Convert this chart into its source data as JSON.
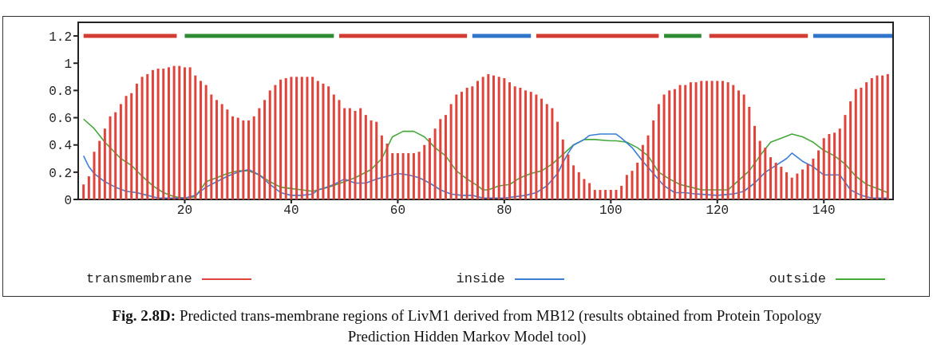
{
  "chart_data": {
    "type": "bar",
    "x": [
      1,
      2,
      3,
      4,
      5,
      6,
      7,
      8,
      9,
      10,
      11,
      12,
      13,
      14,
      15,
      16,
      17,
      18,
      19,
      20,
      21,
      22,
      23,
      24,
      25,
      26,
      27,
      28,
      29,
      30,
      31,
      32,
      33,
      34,
      35,
      36,
      37,
      38,
      39,
      40,
      41,
      42,
      43,
      44,
      45,
      46,
      47,
      48,
      49,
      50,
      51,
      52,
      53,
      54,
      55,
      56,
      57,
      58,
      59,
      60,
      61,
      62,
      63,
      64,
      65,
      66,
      67,
      68,
      69,
      70,
      71,
      72,
      73,
      74,
      75,
      76,
      77,
      78,
      79,
      80,
      81,
      82,
      83,
      84,
      85,
      86,
      87,
      88,
      89,
      90,
      91,
      92,
      93,
      94,
      95,
      96,
      97,
      98,
      99,
      100,
      101,
      102,
      103,
      104,
      105,
      106,
      107,
      108,
      109,
      110,
      111,
      112,
      113,
      114,
      115,
      116,
      117,
      118,
      119,
      120,
      121,
      122,
      123,
      124,
      125,
      126,
      127,
      128,
      129,
      130,
      131,
      132,
      133,
      134,
      135,
      136,
      137,
      138,
      139,
      140,
      141,
      142,
      143,
      144,
      145,
      146,
      147,
      148,
      149,
      150,
      151,
      152
    ],
    "series": [
      {
        "name": "transmembrane",
        "color": "#e0443c",
        "values": [
          0.11,
          0.17,
          0.35,
          0.43,
          0.52,
          0.61,
          0.64,
          0.7,
          0.76,
          0.78,
          0.85,
          0.9,
          0.92,
          0.95,
          0.96,
          0.96,
          0.97,
          0.98,
          0.98,
          0.97,
          0.97,
          0.91,
          0.87,
          0.84,
          0.77,
          0.73,
          0.7,
          0.66,
          0.61,
          0.6,
          0.58,
          0.58,
          0.61,
          0.67,
          0.73,
          0.8,
          0.84,
          0.88,
          0.89,
          0.9,
          0.9,
          0.9,
          0.9,
          0.9,
          0.87,
          0.85,
          0.83,
          0.77,
          0.73,
          0.67,
          0.67,
          0.65,
          0.67,
          0.62,
          0.58,
          0.57,
          0.47,
          0.41,
          0.34,
          0.34,
          0.34,
          0.34,
          0.34,
          0.35,
          0.4,
          0.45,
          0.52,
          0.59,
          0.62,
          0.7,
          0.77,
          0.79,
          0.82,
          0.83,
          0.87,
          0.9,
          0.92,
          0.91,
          0.9,
          0.89,
          0.86,
          0.83,
          0.82,
          0.8,
          0.79,
          0.77,
          0.74,
          0.7,
          0.67,
          0.57,
          0.44,
          0.33,
          0.25,
          0.2,
          0.15,
          0.12,
          0.07,
          0.07,
          0.07,
          0.07,
          0.07,
          0.1,
          0.18,
          0.21,
          0.27,
          0.4,
          0.47,
          0.58,
          0.7,
          0.77,
          0.8,
          0.81,
          0.84,
          0.84,
          0.86,
          0.86,
          0.87,
          0.87,
          0.87,
          0.87,
          0.87,
          0.86,
          0.84,
          0.8,
          0.77,
          0.68,
          0.54,
          0.43,
          0.38,
          0.31,
          0.27,
          0.24,
          0.2,
          0.16,
          0.19,
          0.22,
          0.26,
          0.3,
          0.36,
          0.45,
          0.48,
          0.49,
          0.52,
          0.62,
          0.72,
          0.81,
          0.82,
          0.86,
          0.89,
          0.91,
          0.91,
          0.92
        ]
      },
      {
        "name": "inside",
        "type": "line",
        "color": "#3a7fd5",
        "x": [
          1,
          2,
          3,
          5,
          7,
          9,
          11,
          13,
          15,
          18,
          20,
          22,
          24,
          26,
          28,
          30,
          32,
          34,
          36,
          38,
          40,
          42,
          44,
          45,
          46,
          48,
          50,
          52,
          54,
          56,
          58,
          60,
          62,
          64,
          66,
          68,
          70,
          72,
          74,
          76,
          78,
          80,
          82,
          84,
          86,
          88,
          90,
          91,
          92,
          93,
          95,
          96,
          98,
          100,
          101,
          102,
          104,
          106,
          108,
          110,
          112,
          114,
          116,
          120,
          123,
          125,
          127,
          129,
          131,
          133,
          134,
          136,
          138,
          140,
          142,
          143,
          145,
          147,
          149,
          152
        ],
        "values": [
          0.32,
          0.24,
          0.19,
          0.13,
          0.09,
          0.06,
          0.05,
          0.03,
          0.01,
          0.01,
          0.01,
          0.03,
          0.09,
          0.13,
          0.17,
          0.2,
          0.22,
          0.18,
          0.11,
          0.05,
          0.03,
          0.03,
          0.04,
          0.07,
          0.08,
          0.11,
          0.15,
          0.12,
          0.12,
          0.15,
          0.17,
          0.19,
          0.18,
          0.16,
          0.12,
          0.07,
          0.04,
          0.03,
          0.03,
          0.01,
          0.01,
          0.01,
          0.02,
          0.03,
          0.05,
          0.1,
          0.19,
          0.27,
          0.34,
          0.4,
          0.44,
          0.47,
          0.48,
          0.48,
          0.48,
          0.45,
          0.38,
          0.28,
          0.19,
          0.1,
          0.05,
          0.05,
          0.04,
          0.03,
          0.04,
          0.06,
          0.12,
          0.2,
          0.25,
          0.3,
          0.34,
          0.28,
          0.24,
          0.18,
          0.18,
          0.18,
          0.07,
          0.03,
          0.01,
          0.01
        ]
      },
      {
        "name": "outside",
        "type": "line",
        "color": "#46a83c",
        "x": [
          1,
          3,
          5,
          8,
          10,
          12,
          14,
          16,
          18,
          20,
          22,
          24,
          26,
          28,
          30,
          32,
          34,
          36,
          38,
          40,
          42,
          44,
          45,
          47,
          50,
          52,
          55,
          57,
          58,
          59,
          61,
          63,
          65,
          67,
          69,
          71,
          73,
          75,
          76,
          77,
          79,
          81,
          83,
          85,
          87,
          89,
          91,
          93,
          95,
          97,
          100,
          101,
          103,
          105,
          107,
          109,
          111,
          113,
          115,
          117,
          120,
          122,
          124,
          126,
          128,
          130,
          132,
          134,
          136,
          138,
          140,
          142,
          144,
          146,
          148,
          150,
          152
        ],
        "values": [
          0.59,
          0.52,
          0.42,
          0.3,
          0.25,
          0.17,
          0.1,
          0.05,
          0.02,
          0.01,
          0.02,
          0.13,
          0.16,
          0.19,
          0.21,
          0.21,
          0.18,
          0.13,
          0.09,
          0.08,
          0.07,
          0.06,
          0.07,
          0.09,
          0.13,
          0.16,
          0.22,
          0.3,
          0.38,
          0.46,
          0.5,
          0.5,
          0.46,
          0.38,
          0.32,
          0.21,
          0.15,
          0.1,
          0.07,
          0.07,
          0.1,
          0.11,
          0.16,
          0.19,
          0.21,
          0.26,
          0.33,
          0.4,
          0.44,
          0.44,
          0.43,
          0.43,
          0.42,
          0.38,
          0.32,
          0.2,
          0.15,
          0.11,
          0.09,
          0.07,
          0.07,
          0.07,
          0.14,
          0.21,
          0.32,
          0.42,
          0.45,
          0.48,
          0.46,
          0.42,
          0.36,
          0.32,
          0.26,
          0.17,
          0.11,
          0.08,
          0.05
        ]
      },
      {
        "type": "line",
        "color": "#d23c32",
        "x": [
          1,
          18.5,
          19,
          49,
          73,
          74,
          86,
          109,
          110,
          118.5,
          137
        ],
        "values": [
          1.2,
          1.2,
          null,
          1.2,
          1.2,
          null,
          1.2,
          1.2,
          null,
          1.2,
          1.2
        ]
      },
      {
        "type": "line",
        "color": "#2e8b34",
        "x": [
          20,
          48,
          49,
          110,
          117
        ],
        "values": [
          1.2,
          1.2,
          null,
          1.2,
          1.2
        ]
      },
      {
        "type": "line",
        "color": "#2f74c8",
        "x": [
          74,
          85,
          86,
          138,
          153
        ],
        "values": [
          1.2,
          1.2,
          null,
          1.2,
          1.2
        ]
      }
    ],
    "xlim": [
      0,
      153
    ],
    "xticks": [
      20,
      40,
      60,
      80,
      100,
      120,
      140
    ],
    "ylim": [
      0,
      1.3
    ],
    "yticks": [
      0,
      0.2,
      0.4,
      0.6,
      0.8,
      1,
      1.2
    ],
    "legend": "bottom",
    "annotations": [
      "Fig. 2.8D: Predicted trans-membrane  regions of LivM1 derived from MB12 (results obtained from Protein Topology Prediction Hidden Markov Model tool)"
    ]
  }
}
